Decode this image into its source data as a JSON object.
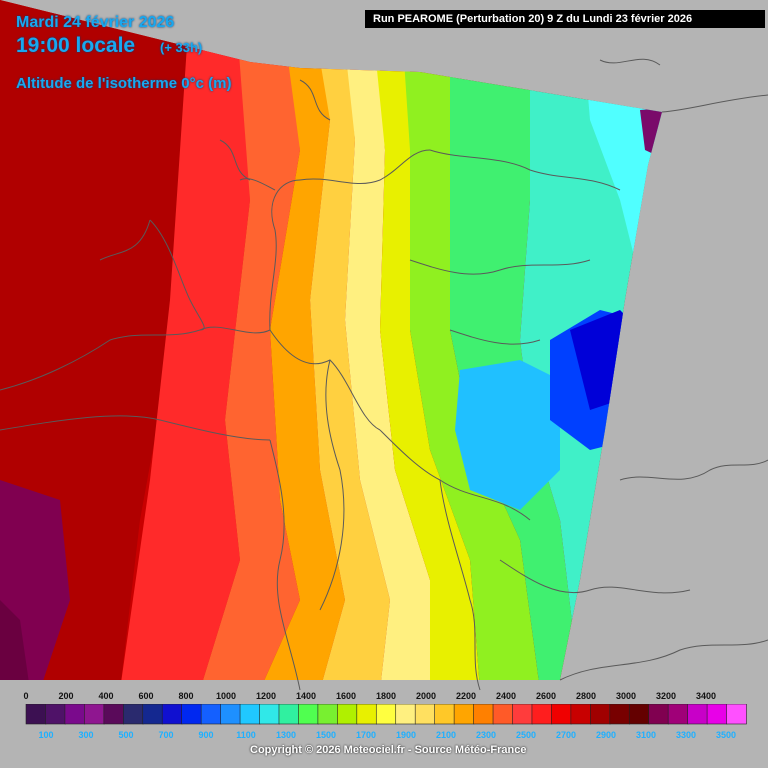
{
  "header": {
    "date": "Mardi 24 février 2026",
    "time": "19:00 locale",
    "lead": "(+ 33h)",
    "parameter": "Altitude de l'isotherme 0°c (m)",
    "run": "Run PEAROME (Perturbation 20) 9 Z du Lundi 23 février 2026"
  },
  "legend": {
    "top_labels": [
      "0",
      "200",
      "400",
      "600",
      "800",
      "1000",
      "1200",
      "1400",
      "1600",
      "1800",
      "2000",
      "2200",
      "2400",
      "2600",
      "2800",
      "3000",
      "3200",
      "3400"
    ],
    "bottom_labels": [
      "100",
      "300",
      "500",
      "700",
      "900",
      "1100",
      "1300",
      "1500",
      "1700",
      "1900",
      "2100",
      "2300",
      "2500",
      "2700",
      "2900",
      "3100",
      "3300",
      "3500"
    ],
    "colors": [
      "#3c1052",
      "#4f1268",
      "#7a0a8c",
      "#8f1690",
      "#5a0a5a",
      "#2a2a6e",
      "#142890",
      "#1010d0",
      "#0028f0",
      "#1460ff",
      "#1e90ff",
      "#20c8ff",
      "#30e8e8",
      "#30f0a0",
      "#50ff50",
      "#78f030",
      "#b0f000",
      "#e8f000",
      "#ffff40",
      "#fff080",
      "#ffe060",
      "#ffc828",
      "#ffa500",
      "#ff8000",
      "#ff5a28",
      "#ff3c3c",
      "#ff1e1e",
      "#f00000",
      "#c80000",
      "#a00000",
      "#780000",
      "#640000",
      "#800050",
      "#a00078",
      "#c800c8",
      "#e800e8",
      "#ff50ff"
    ]
  },
  "copyright": "Copyright © 2026 Meteociel.fr - Source Météo-France",
  "map": {
    "outside_color": "#b4b4b4",
    "border_color": "#5a5a5a"
  }
}
